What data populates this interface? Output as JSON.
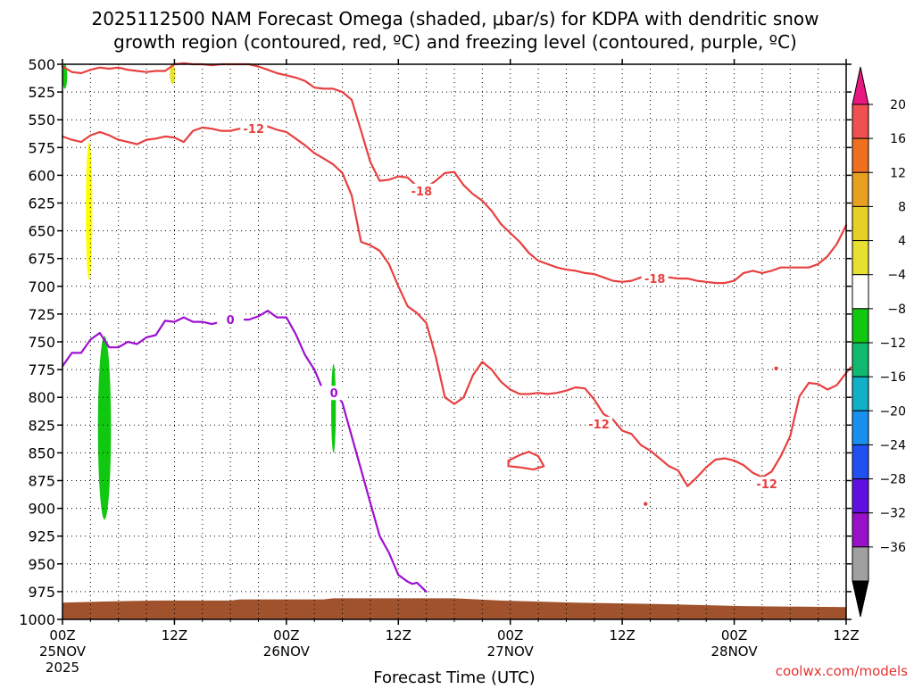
{
  "chart_data": {
    "type": "time-height",
    "title_line1": "2025112500 NAM Forecast Omega (shaded, μbar/s) for KDPA with dendritic snow",
    "title_line2": "growth region (contoured, red, ºC) and freezing level (contoured, purple, ºC)",
    "xlabel": "Forecast Time (UTC)",
    "credit": "coolwx.com/models",
    "x_unit": "forecast hours",
    "xlim": [
      0,
      84
    ],
    "ylim": [
      1000,
      500
    ],
    "y_ticks": [
      500,
      525,
      550,
      575,
      600,
      625,
      650,
      675,
      700,
      725,
      750,
      775,
      800,
      825,
      850,
      875,
      900,
      925,
      950,
      975,
      1000
    ],
    "x_ticks": [
      {
        "h": 0,
        "lines": [
          "00Z",
          "25NOV",
          "2025"
        ]
      },
      {
        "h": 12,
        "lines": [
          "12Z"
        ]
      },
      {
        "h": 24,
        "lines": [
          "00Z",
          "26NOV"
        ]
      },
      {
        "h": 36,
        "lines": [
          "12Z"
        ]
      },
      {
        "h": 48,
        "lines": [
          "00Z",
          "27NOV"
        ]
      },
      {
        "h": 60,
        "lines": [
          "12Z"
        ]
      },
      {
        "h": 72,
        "lines": [
          "00Z",
          "28NOV"
        ]
      },
      {
        "h": 84,
        "lines": [
          "12Z"
        ]
      }
    ],
    "colorbar": {
      "labels": [
        "20",
        "16",
        "12",
        "8",
        "4",
        "−4",
        "−8",
        "−12",
        "−16",
        "−20",
        "−24",
        "−28",
        "−32",
        "−36"
      ],
      "colors": [
        "#f05050",
        "#f07020",
        "#e8a020",
        "#e8d028",
        "#e8e030",
        "#ffffff",
        "#10c810",
        "#10b870",
        "#10b0c8",
        "#1890f0",
        "#2050f0",
        "#6010e0",
        "#9810c8",
        "#a0a0a0"
      ],
      "top_arrow_color": "#e81880",
      "bottom_arrow_color": "#000000"
    },
    "series": [
      {
        "name": "dendritic upper isotherm (-18 C), top segment",
        "color": "#e84040",
        "points": [
          [
            0,
            502
          ],
          [
            1,
            507
          ],
          [
            2,
            508
          ],
          [
            3,
            505
          ],
          [
            4,
            503
          ],
          [
            5,
            504
          ],
          [
            6,
            503
          ],
          [
            7,
            505
          ],
          [
            8,
            506
          ],
          [
            9,
            507
          ],
          [
            10,
            506
          ],
          [
            11,
            506
          ],
          [
            12,
            500
          ],
          [
            13,
            499
          ],
          [
            14,
            500
          ],
          [
            15,
            500
          ],
          [
            16,
            501
          ],
          [
            17,
            500
          ],
          [
            18,
            500
          ],
          [
            19,
            500
          ],
          [
            20,
            500
          ],
          [
            21,
            502
          ],
          [
            22,
            505
          ],
          [
            23,
            508
          ],
          [
            24,
            510
          ],
          [
            25,
            512
          ],
          [
            26,
            515
          ],
          [
            27,
            521
          ],
          [
            28,
            522
          ],
          [
            29,
            522
          ],
          [
            30,
            525
          ],
          [
            31,
            532
          ],
          [
            32,
            560
          ],
          [
            33,
            588
          ],
          [
            34,
            605
          ],
          [
            35,
            604
          ],
          [
            36,
            601
          ],
          [
            37,
            602
          ],
          [
            38,
            610
          ]
        ]
      },
      {
        "name": "dendritic upper isotherm (-18 C), main segment",
        "color": "#e84040",
        "label": "-18",
        "label_points": [
          [
            38.5,
            614
          ],
          [
            63.5,
            693
          ]
        ],
        "points": [
          [
            39,
            611
          ],
          [
            40,
            605
          ],
          [
            41,
            598
          ],
          [
            42,
            597
          ],
          [
            43,
            609
          ],
          [
            44,
            617
          ],
          [
            45,
            623
          ],
          [
            46,
            632
          ],
          [
            47,
            644
          ],
          [
            48,
            652
          ],
          [
            49,
            660
          ],
          [
            50,
            670
          ],
          [
            51,
            677
          ],
          [
            52,
            680
          ],
          [
            53,
            683
          ],
          [
            54,
            685
          ],
          [
            55,
            686
          ],
          [
            56,
            688
          ],
          [
            57,
            689
          ],
          [
            58,
            692
          ],
          [
            59,
            695
          ],
          [
            60,
            696
          ],
          [
            61,
            695
          ],
          [
            62,
            692
          ],
          [
            63,
            693
          ],
          [
            64,
            692
          ],
          [
            65,
            692
          ],
          [
            66,
            693
          ],
          [
            67,
            693
          ],
          [
            68,
            695
          ],
          [
            69,
            696
          ],
          [
            70,
            697
          ],
          [
            71,
            697
          ],
          [
            72,
            695
          ],
          [
            73,
            688
          ],
          [
            74,
            686
          ],
          [
            75,
            688
          ],
          [
            76,
            686
          ],
          [
            77,
            683
          ],
          [
            78,
            683
          ],
          [
            79,
            683
          ],
          [
            80,
            683
          ],
          [
            81,
            680
          ],
          [
            82,
            673
          ],
          [
            83,
            662
          ],
          [
            84,
            645
          ]
        ]
      },
      {
        "name": "dendritic lower isotherm (-12 C)",
        "color": "#e84040",
        "label": "-12",
        "label_points": [
          [
            20.5,
            558
          ],
          [
            57.5,
            824
          ],
          [
            75.5,
            878
          ]
        ],
        "points": [
          [
            0,
            565
          ],
          [
            1,
            568
          ],
          [
            2,
            570
          ],
          [
            3,
            564
          ],
          [
            4,
            561
          ],
          [
            5,
            564
          ],
          [
            6,
            568
          ],
          [
            7,
            570
          ],
          [
            8,
            572
          ],
          [
            9,
            568
          ],
          [
            10,
            567
          ],
          [
            11,
            565
          ],
          [
            12,
            566
          ],
          [
            13,
            570
          ],
          [
            14,
            560
          ],
          [
            15,
            557
          ],
          [
            16,
            558
          ],
          [
            17,
            560
          ],
          [
            18,
            560
          ],
          [
            19,
            558
          ],
          [
            20,
            558
          ],
          [
            21,
            556
          ],
          [
            22,
            556
          ],
          [
            23,
            559
          ],
          [
            24,
            561
          ],
          [
            25,
            567
          ],
          [
            26,
            573
          ],
          [
            27,
            580
          ],
          [
            28,
            585
          ],
          [
            29,
            590
          ],
          [
            30,
            598
          ],
          [
            31,
            618
          ],
          [
            32,
            660
          ],
          [
            33,
            663
          ],
          [
            34,
            668
          ],
          [
            35,
            680
          ],
          [
            36,
            700
          ],
          [
            37,
            718
          ],
          [
            38,
            724
          ],
          [
            39,
            733
          ],
          [
            40,
            763
          ],
          [
            41,
            800
          ],
          [
            42,
            806
          ],
          [
            43,
            800
          ],
          [
            44,
            780
          ],
          [
            45,
            768
          ],
          [
            46,
            775
          ],
          [
            47,
            786
          ],
          [
            48,
            793
          ],
          [
            49,
            797
          ],
          [
            50,
            797
          ],
          [
            51,
            796
          ],
          [
            52,
            797
          ],
          [
            53,
            796
          ],
          [
            54,
            794
          ],
          [
            55,
            791
          ],
          [
            56,
            792
          ],
          [
            57,
            802
          ],
          [
            58,
            815
          ],
          [
            59,
            820
          ],
          [
            60,
            830
          ],
          [
            61,
            833
          ],
          [
            62,
            843
          ],
          [
            63,
            848
          ],
          [
            64,
            855
          ],
          [
            65,
            862
          ],
          [
            66,
            866
          ],
          [
            67,
            880
          ],
          [
            68,
            872
          ],
          [
            69,
            863
          ],
          [
            70,
            856
          ],
          [
            71,
            855
          ],
          [
            72,
            857
          ],
          [
            73,
            861
          ],
          [
            74,
            868
          ],
          [
            75,
            872
          ],
          [
            76,
            867
          ],
          [
            77,
            853
          ],
          [
            78,
            835
          ],
          [
            79,
            799
          ],
          [
            80,
            787
          ],
          [
            81,
            788
          ],
          [
            82,
            793
          ],
          [
            83,
            789
          ],
          [
            84,
            778
          ],
          [
            84.5,
            773
          ]
        ]
      },
      {
        "name": "-12 C closed contour",
        "color": "#e84040",
        "closed": true,
        "points": [
          [
            47.8,
            857
          ],
          [
            49,
            852
          ],
          [
            50,
            849
          ],
          [
            51,
            853
          ],
          [
            51.6,
            862
          ],
          [
            50.5,
            865
          ],
          [
            49,
            863
          ],
          [
            47.8,
            862
          ]
        ]
      },
      {
        "name": "freezing level (0 C)",
        "color": "#9e10d0",
        "label": "0",
        "label_points": [
          [
            18,
            730
          ],
          [
            29.1,
            796
          ]
        ],
        "points": [
          [
            0,
            772
          ],
          [
            1,
            760
          ],
          [
            2,
            760
          ],
          [
            3,
            748
          ],
          [
            4,
            742
          ],
          [
            5,
            755
          ],
          [
            6,
            755
          ],
          [
            7,
            750
          ],
          [
            8,
            752
          ],
          [
            9,
            746
          ],
          [
            10,
            744
          ],
          [
            11,
            731
          ],
          [
            12,
            732
          ],
          [
            13,
            728
          ],
          [
            14,
            732
          ],
          [
            15,
            732
          ],
          [
            16,
            734
          ],
          [
            17,
            732
          ],
          [
            18,
            730
          ],
          [
            19,
            730
          ],
          [
            20,
            730
          ],
          [
            21,
            727
          ],
          [
            22,
            722
          ],
          [
            23,
            728
          ],
          [
            24,
            728
          ],
          [
            25,
            743
          ],
          [
            26,
            762
          ],
          [
            27,
            775
          ],
          [
            28,
            795
          ],
          [
            29,
            792
          ],
          [
            30,
            805
          ],
          [
            31,
            835
          ],
          [
            32,
            865
          ],
          [
            33,
            895
          ],
          [
            34,
            925
          ],
          [
            35,
            940
          ],
          [
            36,
            960
          ],
          [
            37,
            966
          ],
          [
            37.5,
            968
          ],
          [
            38,
            967
          ],
          [
            39,
            975
          ]
        ]
      }
    ],
    "omega_shading": [
      {
        "color": "#ffff00",
        "value_range": [
          4,
          8
        ],
        "x_range": [
          2.5,
          3.2
        ],
        "p_range": [
          570,
          694
        ]
      },
      {
        "color": "#e8e030",
        "value_range": [
          4,
          8
        ],
        "x_range": [
          11.5,
          12.1
        ],
        "p_range": [
          500,
          518
        ]
      },
      {
        "color": "#10c810",
        "value_range": [
          -8,
          -4
        ],
        "x_range": [
          0,
          0.5
        ],
        "p_range": [
          500,
          522
        ]
      },
      {
        "color": "#10c810",
        "value_range": [
          -8,
          -4
        ],
        "x_range": [
          3.8,
          5.2
        ],
        "p_range": [
          745,
          910
        ]
      },
      {
        "color": "#10c810",
        "value_range": [
          -8,
          -4
        ],
        "x_range": [
          28.8,
          29.3
        ],
        "p_range": [
          770,
          850
        ]
      }
    ],
    "terrain": {
      "color": "#a0522d",
      "surface_pressure": [
        [
          0,
          985
        ],
        [
          4,
          984
        ],
        [
          10,
          983
        ],
        [
          18,
          983
        ],
        [
          19,
          982
        ],
        [
          28,
          982
        ],
        [
          29,
          981
        ],
        [
          42,
          981
        ],
        [
          47,
          983
        ],
        [
          55,
          985
        ],
        [
          63,
          986
        ],
        [
          73,
          988
        ],
        [
          84,
          989
        ]
      ]
    },
    "small_marks": [
      {
        "h": 76.5,
        "p": 774,
        "color": "#e84040"
      },
      {
        "h": 62.5,
        "p": 896,
        "color": "#e84040"
      }
    ]
  }
}
